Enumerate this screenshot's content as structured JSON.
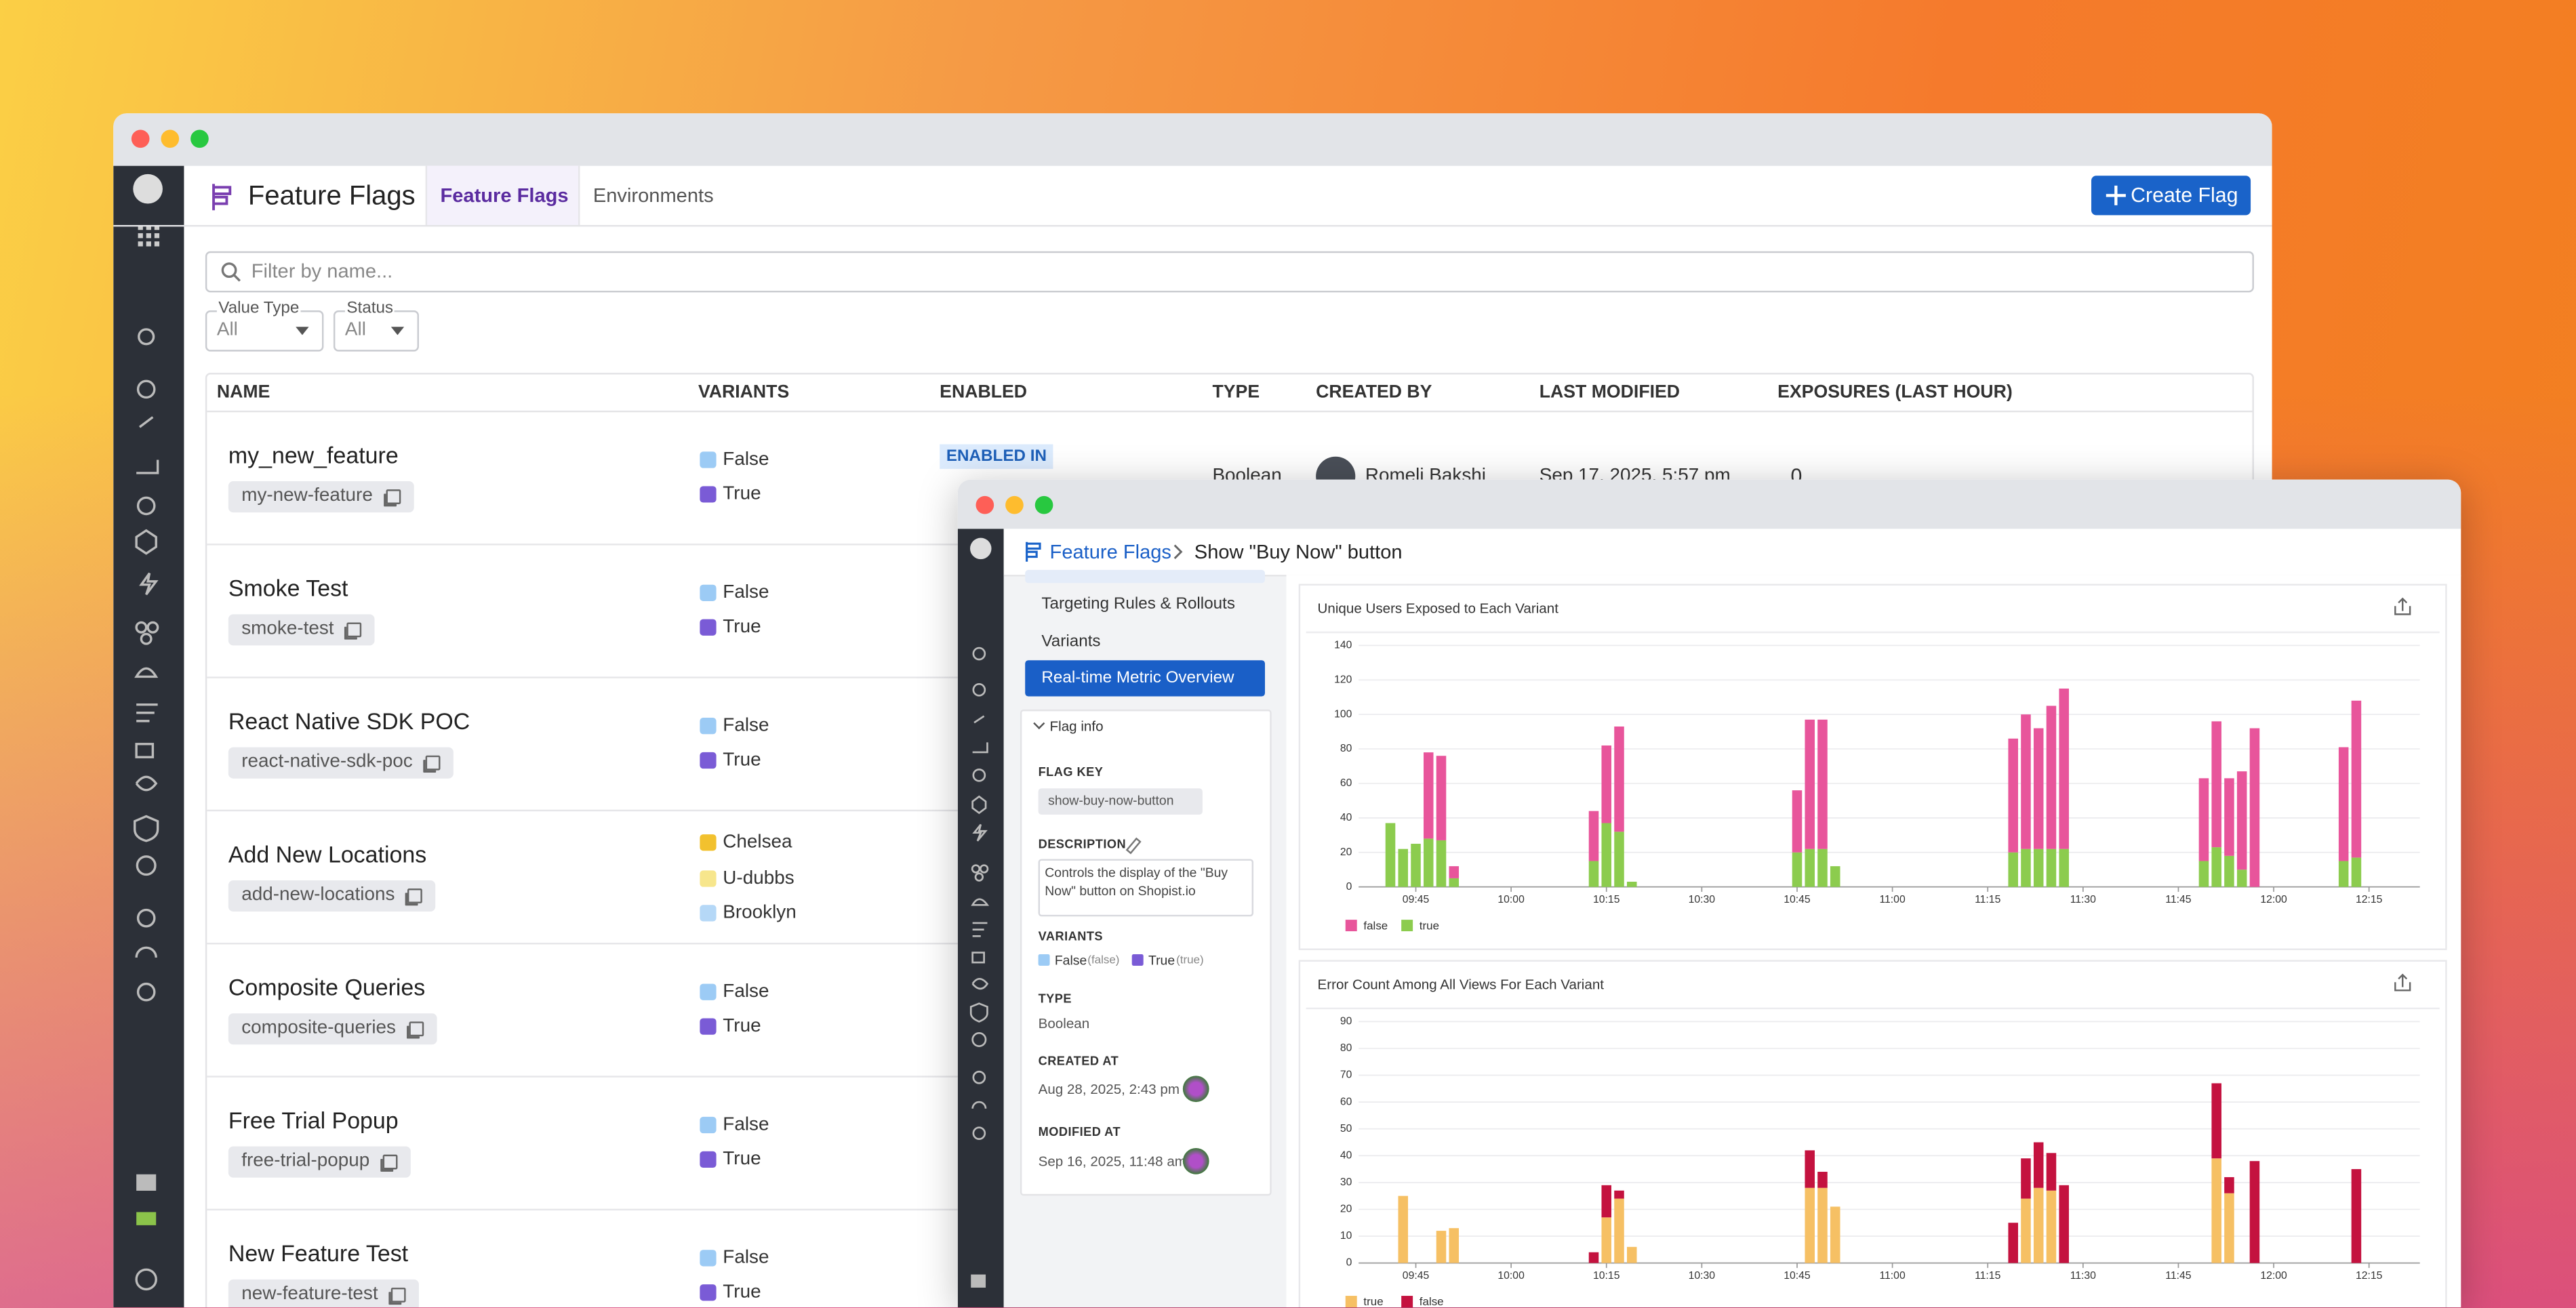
{
  "window1": {
    "title": "Feature Flags",
    "tabs": [
      "Feature Flags",
      "Environments"
    ],
    "create_button": "Create Flag",
    "filter_placeholder": "Filter by name...",
    "filters": [
      {
        "label": "Value Type",
        "value": "All"
      },
      {
        "label": "Status",
        "value": "All"
      }
    ],
    "columns": [
      "NAME",
      "VARIANTS",
      "ENABLED",
      "TYPE",
      "CREATED BY",
      "LAST MODIFIED",
      "EXPOSURES (LAST HOUR)"
    ],
    "rows": [
      {
        "name": "my_new_feature",
        "key": "my-new-feature",
        "variants": [
          {
            "name": "False",
            "color": "#9ccbf5"
          },
          {
            "name": "True",
            "color": "#7a5bd6"
          }
        ],
        "enabled": "ENABLED IN",
        "type": "Boolean",
        "created_by": "Romeli Bakshi",
        "last_modified": "Sep 17, 2025, 5:57 pm",
        "exposures": 0
      },
      {
        "name": "Smoke Test",
        "key": "smoke-test",
        "variants": [
          {
            "name": "False",
            "color": "#9ccbf5"
          },
          {
            "name": "True",
            "color": "#7a5bd6"
          }
        ]
      },
      {
        "name": "React Native SDK POC",
        "key": "react-native-sdk-poc",
        "variants": [
          {
            "name": "False",
            "color": "#9ccbf5"
          },
          {
            "name": "True",
            "color": "#7a5bd6"
          }
        ]
      },
      {
        "name": "Add New Locations",
        "key": "add-new-locations",
        "variants": [
          {
            "name": "Chelsea",
            "color": "#f2c12e"
          },
          {
            "name": "U-dubbs",
            "color": "#f7e68c"
          },
          {
            "name": "Brooklyn",
            "color": "#b5d8f7"
          }
        ]
      },
      {
        "name": "Composite Queries",
        "key": "composite-queries",
        "variants": [
          {
            "name": "False",
            "color": "#9ccbf5"
          },
          {
            "name": "True",
            "color": "#7a5bd6"
          }
        ]
      },
      {
        "name": "Free Trial Popup",
        "key": "free-trial-popup",
        "variants": [
          {
            "name": "False",
            "color": "#9ccbf5"
          },
          {
            "name": "True",
            "color": "#7a5bd6"
          }
        ]
      },
      {
        "name": "New Feature Test",
        "key": "new-feature-test",
        "variants": [
          {
            "name": "False",
            "color": "#9ccbf5"
          },
          {
            "name": "True",
            "color": "#7a5bd6"
          }
        ]
      }
    ]
  },
  "window2": {
    "breadcrumb": [
      "Feature Flags",
      "Show \"Buy Now\" button"
    ],
    "nav": [
      "Targeting Rules & Rollouts",
      "Variants",
      "Real-time Metric Overview"
    ],
    "flag_info": {
      "title": "Flag info",
      "flag_key_label": "FLAG KEY",
      "flag_key": "show-buy-now-button",
      "description_label": "DESCRIPTION",
      "description": "Controls the display of the \"Buy Now\" button on Shopist.io",
      "variants_label": "VARIANTS",
      "variants": [
        {
          "name": "False",
          "value": "(false)",
          "color": "#9ccbf5"
        },
        {
          "name": "True",
          "value": "(true)",
          "color": "#7a5bd6"
        }
      ],
      "type_label": "TYPE",
      "type": "Boolean",
      "created_label": "CREATED AT",
      "created_at": "Aug 28, 2025, 2:43 pm",
      "modified_label": "MODIFIED AT",
      "modified_at": "Sep 16, 2025, 11:48 am"
    },
    "charts": [
      {
        "type": "bar",
        "stacked": true,
        "stack_bottom": "true",
        "title": "Unique Users Exposed to Each Variant",
        "x": [
          "09:41",
          "09:43",
          "09:45",
          "09:47",
          "09:49",
          "09:51",
          "10:13",
          "10:15",
          "10:17",
          "10:19",
          "10:45",
          "10:47",
          "10:49",
          "10:51",
          "11:19",
          "11:21",
          "11:23",
          "11:25",
          "11:27",
          "11:49",
          "11:51",
          "11:53",
          "11:55",
          "11:57",
          "12:11",
          "12:13"
        ],
        "series": [
          {
            "name": "false",
            "color": "#e8559b",
            "values": [
              0,
              0,
              0,
              50,
              49,
              7,
              29,
              45,
              61,
              0,
              36,
              75,
              75,
              0,
              66,
              78,
              70,
              83,
              93,
              48,
              73,
              45,
              57,
              92,
              66,
              91
            ]
          },
          {
            "name": "true",
            "color": "#8ccc4e",
            "values": [
              37,
              22,
              25,
              28,
              27,
              5,
              15,
              37,
              32,
              3,
              20,
              22,
              22,
              12,
              20,
              22,
              22,
              22,
              22,
              15,
              23,
              18,
              10,
              0,
              15,
              17
            ]
          }
        ],
        "xlim": [
          "09:36",
          "12:23"
        ],
        "xticks": [
          "09:45",
          "10:00",
          "10:15",
          "10:30",
          "10:45",
          "11:00",
          "11:15",
          "11:30",
          "11:45",
          "12:00",
          "12:15"
        ],
        "ylim": [
          0,
          140
        ],
        "yticks": [
          0,
          20,
          40,
          60,
          80,
          100,
          120,
          140
        ],
        "grid": true
      },
      {
        "type": "bar",
        "stacked": true,
        "stack_bottom": "true",
        "title": "Error Count Among All Views For Each Variant",
        "x": [
          "09:43",
          "09:49",
          "09:51",
          "10:13",
          "10:15",
          "10:17",
          "10:19",
          "10:47",
          "10:49",
          "10:51",
          "11:19",
          "11:21",
          "11:23",
          "11:25",
          "11:27",
          "11:51",
          "11:53",
          "11:57",
          "12:13"
        ],
        "series": [
          {
            "name": "true",
            "color": "#f6c064",
            "values": [
              25,
              12,
              13,
              0,
              17,
              24,
              6,
              28,
              28,
              21,
              0,
              24,
              28,
              27,
              0,
              39,
              26,
              0,
              0
            ]
          },
          {
            "name": "false",
            "color": "#c4123f",
            "values": [
              0,
              0,
              0,
              4,
              12,
              3,
              0,
              14,
              6,
              0,
              15,
              15,
              17,
              14,
              29,
              28,
              6,
              38,
              35
            ]
          }
        ],
        "xlim": [
          "09:36",
          "12:23"
        ],
        "xticks": [
          "09:45",
          "10:00",
          "10:15",
          "10:30",
          "10:45",
          "11:00",
          "11:15",
          "11:30",
          "11:45",
          "12:00",
          "12:15"
        ],
        "ylim": [
          0,
          90
        ],
        "yticks": [
          0,
          10,
          20,
          30,
          40,
          50,
          60,
          70,
          80,
          90
        ],
        "grid": true
      }
    ]
  }
}
